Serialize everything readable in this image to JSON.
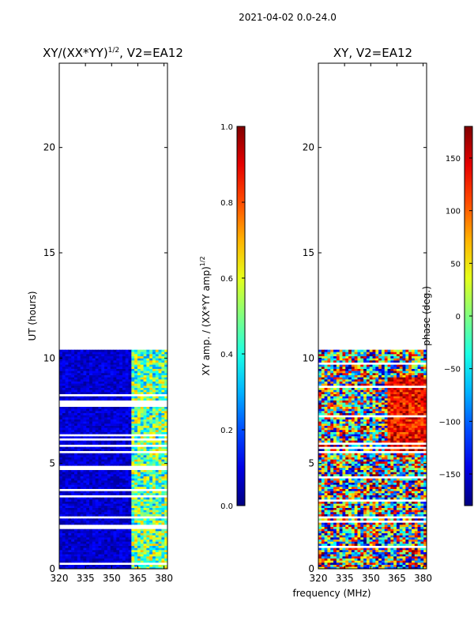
{
  "suptitle": "2021-04-02 0.0-24.0",
  "shared_xlabel": "frequency (MHz)",
  "chart_data": [
    {
      "type": "heatmap",
      "title": "XY/(XX*YY)",
      "title_exponent": "1/2",
      "title_suffix": ", V2=EA12",
      "ylabel": "UT (hours)",
      "xlim": [
        320,
        382
      ],
      "ylim": [
        0,
        24
      ],
      "xticks": [
        "320",
        "335",
        "350",
        "365",
        "380"
      ],
      "xtick_values": [
        320,
        335,
        350,
        365,
        380
      ],
      "yticks": [
        "0",
        "5",
        "10",
        "15",
        "20"
      ],
      "ytick_values": [
        0,
        5,
        10,
        15,
        20
      ],
      "data_time_range_hours": [
        0,
        10.3
      ],
      "colorbar": {
        "label": "XY amp. / (XX*YY amp)",
        "label_exponent": "1/2",
        "range": [
          0.0,
          1.0
        ],
        "ticks": [
          "0.0",
          "0.2",
          "0.4",
          "0.6",
          "0.8",
          "1.0"
        ],
        "tick_values": [
          0.0,
          0.2,
          0.4,
          0.6,
          0.8,
          1.0
        ],
        "colormap": "jet"
      }
    },
    {
      "type": "heatmap",
      "title": "XY, V2=EA12",
      "xlim": [
        320,
        382
      ],
      "ylim": [
        0,
        24
      ],
      "xticks": [
        "320",
        "335",
        "350",
        "365",
        "380"
      ],
      "xtick_values": [
        320,
        335,
        350,
        365,
        380
      ],
      "yticks": [
        "0",
        "5",
        "10",
        "15",
        "20"
      ],
      "ytick_values": [
        0,
        5,
        10,
        15,
        20
      ],
      "data_time_range_hours": [
        0,
        10.3
      ],
      "colorbar": {
        "label": "phase (deg.)",
        "range": [
          -180,
          180
        ],
        "ticks": [
          "−150",
          "−100",
          "−50",
          "0",
          "50",
          "100",
          "150"
        ],
        "tick_values": [
          -150,
          -100,
          -50,
          0,
          50,
          100,
          150
        ],
        "colormap": "jet"
      }
    }
  ]
}
